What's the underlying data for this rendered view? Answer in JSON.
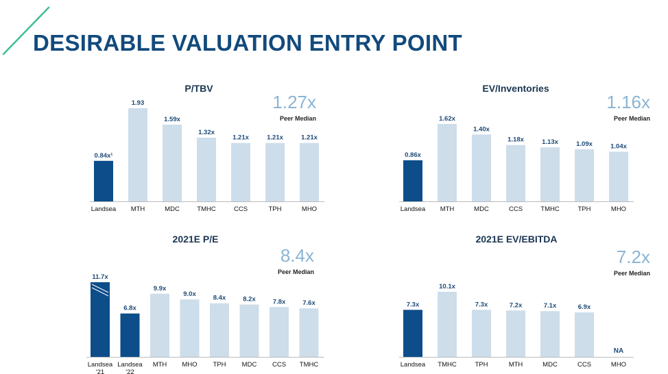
{
  "page": {
    "title": "DESIRABLE VALUATION ENTRY POINT"
  },
  "colors": {
    "title": "#124a7c",
    "accent_line": "#3dbf8f",
    "highlight_bar": "#0d4d8a",
    "peer_bar": "#cdddea",
    "median_text": "#8ab4d4",
    "value_text": "#1d4a78",
    "axis": "#bbbbbb"
  },
  "chart_data": [
    {
      "type": "bar",
      "title": "P/TBV",
      "median_value": "1.27x",
      "median_label": "Peer Median",
      "categories": [
        "Landsea",
        "MTH",
        "MDC",
        "TMHC",
        "CCS",
        "TPH",
        "MHO"
      ],
      "values": [
        0.84,
        1.93,
        1.59,
        1.32,
        1.21,
        1.21,
        1.21
      ],
      "labels": [
        "0.84x¹",
        "1.93",
        "1.59x",
        "1.32x",
        "1.21x",
        "1.21x",
        "1.21x"
      ],
      "highlight": [
        0
      ],
      "ylim": [
        0,
        1.93
      ]
    },
    {
      "type": "bar",
      "title": "EV/Inventories",
      "median_value": "1.16x",
      "median_label": "Peer Median",
      "categories": [
        "Landsea",
        "MTH",
        "MDC",
        "CCS",
        "TMHC",
        "TPH",
        "MHO"
      ],
      "values": [
        0.86,
        1.62,
        1.4,
        1.18,
        1.13,
        1.09,
        1.04
      ],
      "labels": [
        "0.86x",
        "1.62x",
        "1.40x",
        "1.18x",
        "1.13x",
        "1.09x",
        "1.04x"
      ],
      "highlight": [
        0
      ],
      "ylim": [
        0,
        1.62
      ]
    },
    {
      "type": "bar",
      "title": "2021E P/E",
      "median_value": "8.4x",
      "median_label": "Peer Median",
      "categories": [
        "Landsea '21",
        "Landsea '22",
        "MTH",
        "MHO",
        "TPH",
        "MDC",
        "CCS",
        "TMHC"
      ],
      "values": [
        11.7,
        6.8,
        9.9,
        9.0,
        8.4,
        8.2,
        7.8,
        7.6
      ],
      "labels": [
        "11.7x",
        "6.8x",
        "9.9x",
        "9.0x",
        "8.4x",
        "8.2x",
        "7.8x",
        "7.6x"
      ],
      "highlight": [
        0,
        1
      ],
      "hatched": [
        0
      ],
      "ylim": [
        0,
        11.7
      ]
    },
    {
      "type": "bar",
      "title": "2021E EV/EBITDA",
      "median_value": "7.2x",
      "median_label": "Peer Median",
      "categories": [
        "Landsea",
        "TMHC",
        "TPH",
        "MTH",
        "MDC",
        "CCS",
        "MHO"
      ],
      "values": [
        7.3,
        10.1,
        7.3,
        7.2,
        7.1,
        6.9,
        null
      ],
      "labels": [
        "7.3x",
        "10.1x",
        "7.3x",
        "7.2x",
        "7.1x",
        "6.9x",
        "NA"
      ],
      "highlight": [
        0
      ],
      "ylim": [
        0,
        10.1
      ]
    }
  ]
}
